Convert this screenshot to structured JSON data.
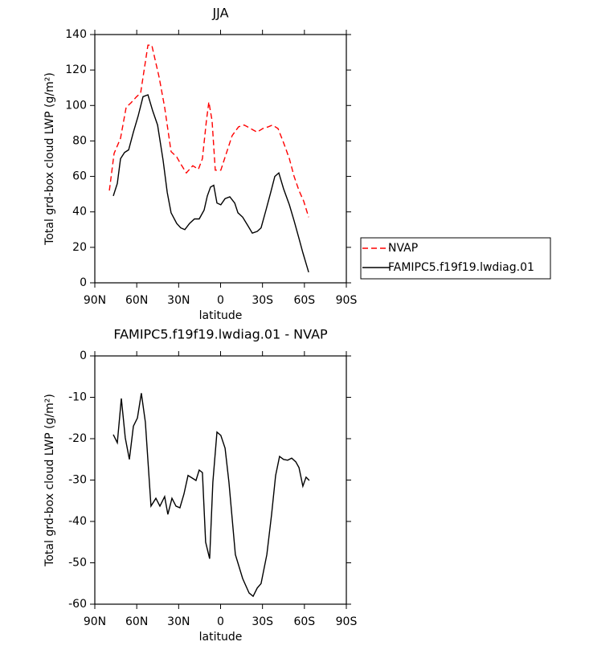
{
  "chart_data": [
    {
      "type": "line",
      "title": "JJA",
      "xlabel": "latitude",
      "ylabel": "Total grd-box cloud LWP (g/m²)",
      "xlim": [
        90,
        -90
      ],
      "xticks": [
        {
          "value": 90,
          "label": "90N"
        },
        {
          "value": 60,
          "label": "60N"
        },
        {
          "value": 30,
          "label": "30N"
        },
        0,
        {
          "value": -30,
          "label": "30S"
        },
        {
          "value": -60,
          "label": "60S"
        },
        {
          "value": -90,
          "label": "90S"
        }
      ],
      "ylim": [
        0,
        140
      ],
      "yticks": [
        0,
        20,
        40,
        60,
        80,
        100,
        120,
        140
      ],
      "legend": "right",
      "series": [
        {
          "name": "NVAP",
          "color": "#ff0000",
          "dash": true,
          "x": [
            79.6,
            76.2,
            71.6,
            67.6,
            64.1,
            60.1,
            57.2,
            52.0,
            49.2,
            44.0,
            40.0,
            35.4,
            31.4,
            28.5,
            24.5,
            19.9,
            15.9,
            13.0,
            10.1,
            8.4,
            6.1,
            3.8,
            -0.2,
            -4.3,
            -8.3,
            -12.9,
            -16.9,
            -21.5,
            -26.1,
            -30.2,
            -34.2,
            -37.1,
            -41.1,
            -45.1,
            -49.2,
            -52.6,
            -56.1,
            -59.5,
            -63.0
          ],
          "values": [
            52,
            73,
            81.5,
            99,
            101.5,
            105,
            107,
            134,
            134,
            116,
            99,
            74,
            71,
            67,
            62,
            66,
            64,
            70,
            91.5,
            102,
            91.5,
            63.5,
            63.5,
            73.5,
            83,
            88,
            89,
            87,
            85,
            87,
            88,
            89,
            87,
            79,
            70,
            60,
            52,
            46,
            37
          ]
        },
        {
          "name": "FAMIPC5.f19f19.lwdiag.01",
          "color": "#000000",
          "dash": false,
          "x": [
            76.8,
            73.9,
            71.6,
            68.7,
            65.8,
            62.4,
            59.0,
            55.5,
            52.0,
            48.6,
            45.1,
            41.1,
            38.2,
            35.4,
            31.4,
            28.5,
            25.6,
            22.2,
            18.7,
            15.3,
            11.8,
            9.5,
            7.2,
            4.9,
            2.6,
            -0.2,
            -3.2,
            -6.6,
            -10.1,
            -12.4,
            -15.8,
            -19.3,
            -22.7,
            -26.2,
            -29.0,
            -32.5,
            -35.9,
            -38.8,
            -41.7,
            -45.1,
            -49.2,
            -52.6,
            -56.1,
            -58.9,
            -63.0
          ],
          "values": [
            49,
            56,
            70,
            73.5,
            75,
            85,
            94,
            105,
            106,
            97,
            89,
            69,
            51,
            39.5,
            33.5,
            31,
            30,
            33.5,
            36,
            36,
            41,
            49,
            54,
            55,
            45,
            44,
            47.5,
            48.5,
            45,
            39.5,
            37,
            32.5,
            28,
            29,
            31,
            41,
            51,
            60,
            62,
            53,
            44,
            35,
            25,
            17,
            6
          ]
        }
      ]
    },
    {
      "type": "line",
      "title": "FAMIPC5.f19f19.lwdiag.01 - NVAP",
      "xlabel": "latitude",
      "ylabel": "Total grd-box cloud LWP (g/m²)",
      "xlim": [
        90,
        -90
      ],
      "xticks": [
        {
          "value": 90,
          "label": "90N"
        },
        {
          "value": 60,
          "label": "60N"
        },
        {
          "value": 30,
          "label": "30N"
        },
        0,
        {
          "value": -30,
          "label": "30S"
        },
        {
          "value": -60,
          "label": "60S"
        },
        {
          "value": -90,
          "label": "90S"
        }
      ],
      "ylim": [
        -60,
        0
      ],
      "yticks": [
        -60,
        -50,
        -40,
        -30,
        -20,
        -10,
        0
      ],
      "series": [
        {
          "color": "#000000",
          "dash": false,
          "x": [
            76.8,
            73.9,
            71.0,
            68.2,
            65.3,
            62.4,
            59.5,
            56.7,
            53.8,
            49.8,
            46.3,
            43.4,
            40.0,
            37.7,
            34.8,
            31.9,
            29.1,
            26.2,
            23.3,
            20.4,
            17.6,
            15.3,
            13.0,
            10.7,
            7.8,
            5.5,
            2.6,
            -0.2,
            -3.2,
            -6.0,
            -10.6,
            -15.8,
            -20.4,
            -23.3,
            -26.2,
            -29.0,
            -33.1,
            -36.5,
            -39.4,
            -42.2,
            -45.1,
            -48.0,
            -50.9,
            -53.8,
            -56.1,
            -58.9,
            -61.2,
            -63.5
          ],
          "values": [
            -19,
            -21,
            -10.3,
            -19.8,
            -25,
            -17,
            -15,
            -9,
            -16,
            -36.3,
            -34.4,
            -36.3,
            -34,
            -38.3,
            -34.4,
            -36.3,
            -36.7,
            -33.4,
            -28.9,
            -29.5,
            -30.1,
            -27.6,
            -28.2,
            -45,
            -49,
            -30.5,
            -18.4,
            -19.2,
            -22.3,
            -30.5,
            -48,
            -53.8,
            -57.3,
            -58.1,
            -56.1,
            -55,
            -48,
            -38.3,
            -28.9,
            -24.3,
            -25,
            -25.2,
            -24.7,
            -25.6,
            -27,
            -31.5,
            -29.3,
            -30.1
          ]
        }
      ]
    }
  ]
}
